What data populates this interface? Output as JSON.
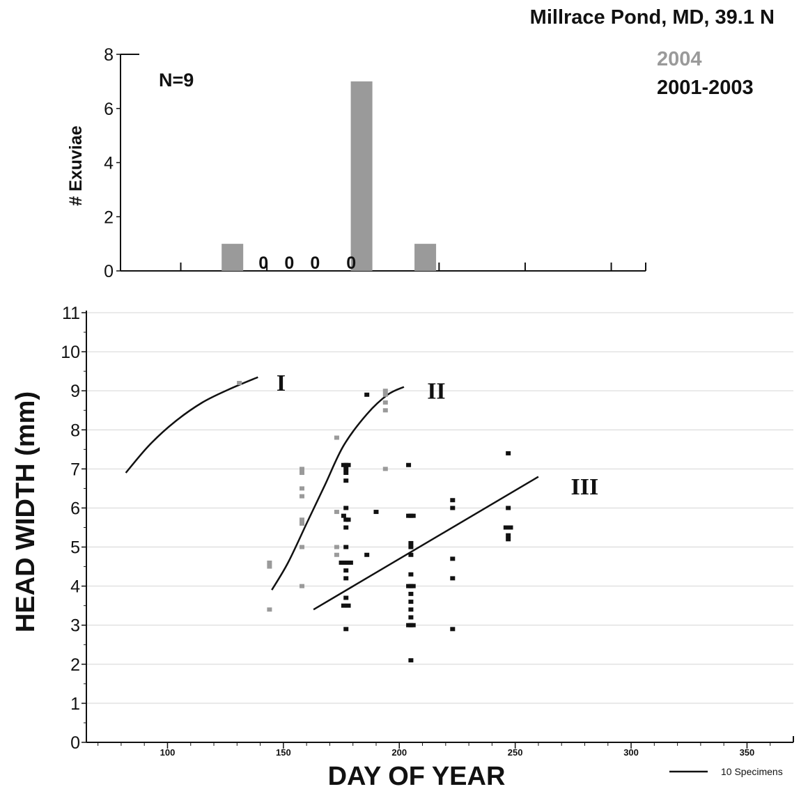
{
  "header": {
    "title": "Millrace Pond, MD, 39.1 N",
    "legend_2004": "2004",
    "legend_2001_2003": "2001-2003"
  },
  "colors": {
    "series_2004": "#9a9a9a",
    "series_2001_2003": "#111111",
    "grid": "#d4d4d4"
  },
  "chart_data": [
    {
      "type": "bar",
      "ylabel": "# Exuviae",
      "annotation": "N=9",
      "ylim": [
        0,
        8
      ],
      "yticks": [
        "0",
        "2",
        "4",
        "6",
        "8"
      ],
      "xlim": [
        65,
        370
      ],
      "bars": [
        {
          "x": 130,
          "value": 1
        },
        {
          "x": 205,
          "value": 7
        },
        {
          "x": 242,
          "value": 1
        }
      ],
      "zero_labels": [
        {
          "x": 148,
          "text": "0"
        },
        {
          "x": 163,
          "text": "0"
        },
        {
          "x": 178,
          "text": "0"
        },
        {
          "x": 199,
          "text": "0"
        }
      ]
    },
    {
      "type": "scatter",
      "xlabel": "DAY OF YEAR",
      "ylabel": "HEAD WIDTH (mm)",
      "xlim": [
        65,
        370
      ],
      "ylim": [
        0,
        11
      ],
      "xticks": [
        "100",
        "150",
        "200",
        "250",
        "300",
        "350"
      ],
      "yticks": [
        "0",
        "1",
        "2",
        "3",
        "4",
        "5",
        "6",
        "7",
        "8",
        "9",
        "10",
        "11"
      ],
      "grid": true,
      "legend_note": "10 Specimens",
      "series": [
        {
          "name": "2004",
          "points": [
            [
              131,
              9.2
            ],
            [
              144,
              4.6
            ],
            [
              144,
              4.5
            ],
            [
              144,
              3.4
            ],
            [
              158,
              7.0
            ],
            [
              158,
              6.9
            ],
            [
              158,
              6.5
            ],
            [
              158,
              6.3
            ],
            [
              158,
              5.7
            ],
            [
              158,
              5.6
            ],
            [
              158,
              5.0
            ],
            [
              158,
              4.0
            ],
            [
              173,
              7.8
            ],
            [
              173,
              5.9
            ],
            [
              173,
              5.0
            ],
            [
              173,
              4.8
            ],
            [
              194,
              9.0
            ],
            [
              194,
              8.9
            ],
            [
              194,
              8.7
            ],
            [
              194,
              8.5
            ],
            [
              194,
              7.0
            ]
          ]
        },
        {
          "name": "2001-2003",
          "points": [
            [
              176,
              7.1
            ],
            [
              177,
              7.1
            ],
            [
              178,
              7.1
            ],
            [
              177,
              7.0
            ],
            [
              177,
              6.9
            ],
            [
              177,
              6.7
            ],
            [
              177,
              6.0
            ],
            [
              176,
              5.8
            ],
            [
              177,
              5.7
            ],
            [
              178,
              5.7
            ],
            [
              177,
              5.5
            ],
            [
              177,
              5.0
            ],
            [
              175,
              4.6
            ],
            [
              176,
              4.6
            ],
            [
              177,
              4.6
            ],
            [
              178,
              4.6
            ],
            [
              179,
              4.6
            ],
            [
              177,
              4.4
            ],
            [
              177,
              4.2
            ],
            [
              177,
              3.7
            ],
            [
              176,
              3.5
            ],
            [
              178,
              3.5
            ],
            [
              177,
              2.9
            ],
            [
              186,
              8.9
            ],
            [
              186,
              4.8
            ],
            [
              190,
              5.9
            ],
            [
              204,
              7.1
            ],
            [
              204,
              5.8
            ],
            [
              205,
              5.8
            ],
            [
              206,
              5.8
            ],
            [
              205,
              5.1
            ],
            [
              205,
              5.0
            ],
            [
              205,
              4.8
            ],
            [
              205,
              4.3
            ],
            [
              204,
              4.0
            ],
            [
              205,
              4.0
            ],
            [
              206,
              4.0
            ],
            [
              205,
              3.8
            ],
            [
              205,
              3.6
            ],
            [
              205,
              3.4
            ],
            [
              205,
              3.2
            ],
            [
              204,
              3.0
            ],
            [
              205,
              3.0
            ],
            [
              206,
              3.0
            ],
            [
              205,
              2.1
            ],
            [
              223,
              6.2
            ],
            [
              223,
              6.0
            ],
            [
              223,
              4.7
            ],
            [
              223,
              4.2
            ],
            [
              223,
              2.9
            ],
            [
              247,
              7.4
            ],
            [
              247,
              6.0
            ],
            [
              246,
              5.5
            ],
            [
              247,
              5.5
            ],
            [
              248,
              5.5
            ],
            [
              247,
              5.3
            ],
            [
              247,
              5.2
            ]
          ]
        }
      ],
      "curves": [
        {
          "label": "I",
          "points": [
            [
              82,
              6.9
            ],
            [
              92,
              7.6
            ],
            [
              103,
              8.2
            ],
            [
              115,
              8.7
            ],
            [
              127,
              9.05
            ],
            [
              139,
              9.35
            ]
          ]
        },
        {
          "label": "II",
          "points": [
            [
              145,
              3.9
            ],
            [
              152,
              4.6
            ],
            [
              160,
              5.6
            ],
            [
              168,
              6.6
            ],
            [
              176,
              7.6
            ],
            [
              186,
              8.4
            ],
            [
              195,
              8.9
            ],
            [
              202,
              9.1
            ]
          ]
        },
        {
          "label": "III",
          "points": [
            [
              163,
              3.4
            ],
            [
              260,
              6.8
            ]
          ]
        }
      ],
      "curve_labels": [
        {
          "text": "I",
          "x": 147,
          "y": 9.0
        },
        {
          "text": "II",
          "x": 212,
          "y": 8.8
        },
        {
          "text": "III",
          "x": 274,
          "y": 6.35
        }
      ]
    }
  ]
}
